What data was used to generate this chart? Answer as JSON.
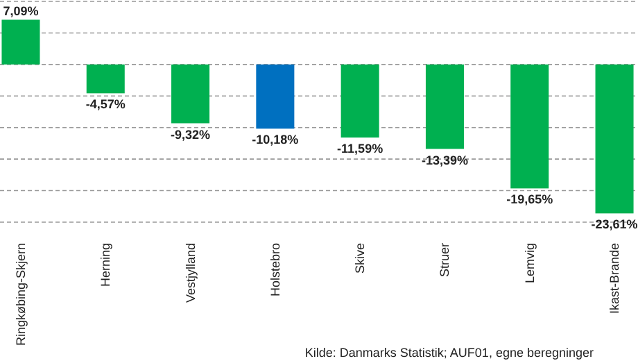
{
  "chart_data": {
    "type": "bar",
    "categories": [
      "Ringkøbing-Skjern",
      "Herning",
      "Vestjylland",
      "Holstebro",
      "Skive",
      "Struer",
      "Lemvig",
      "Ikast-Brande"
    ],
    "values": [
      7.09,
      -4.57,
      -9.32,
      -10.18,
      -11.59,
      -13.39,
      -19.65,
      -23.61
    ],
    "colors": [
      "#00b050",
      "#00b050",
      "#00b050",
      "#0070c0",
      "#00b050",
      "#00b050",
      "#00b050",
      "#00b050"
    ],
    "value_labels": [
      "7,09%",
      "-4,57%",
      "-9,32%",
      "-10,18%",
      "-11,59%",
      "-13,39%",
      "-19,65%",
      "-23,61%"
    ],
    "grid": "y",
    "tick_labels": "x",
    "annotations": [
      "Kilde: Danmarks Statistik; AUF01, egne beregninger"
    ]
  }
}
